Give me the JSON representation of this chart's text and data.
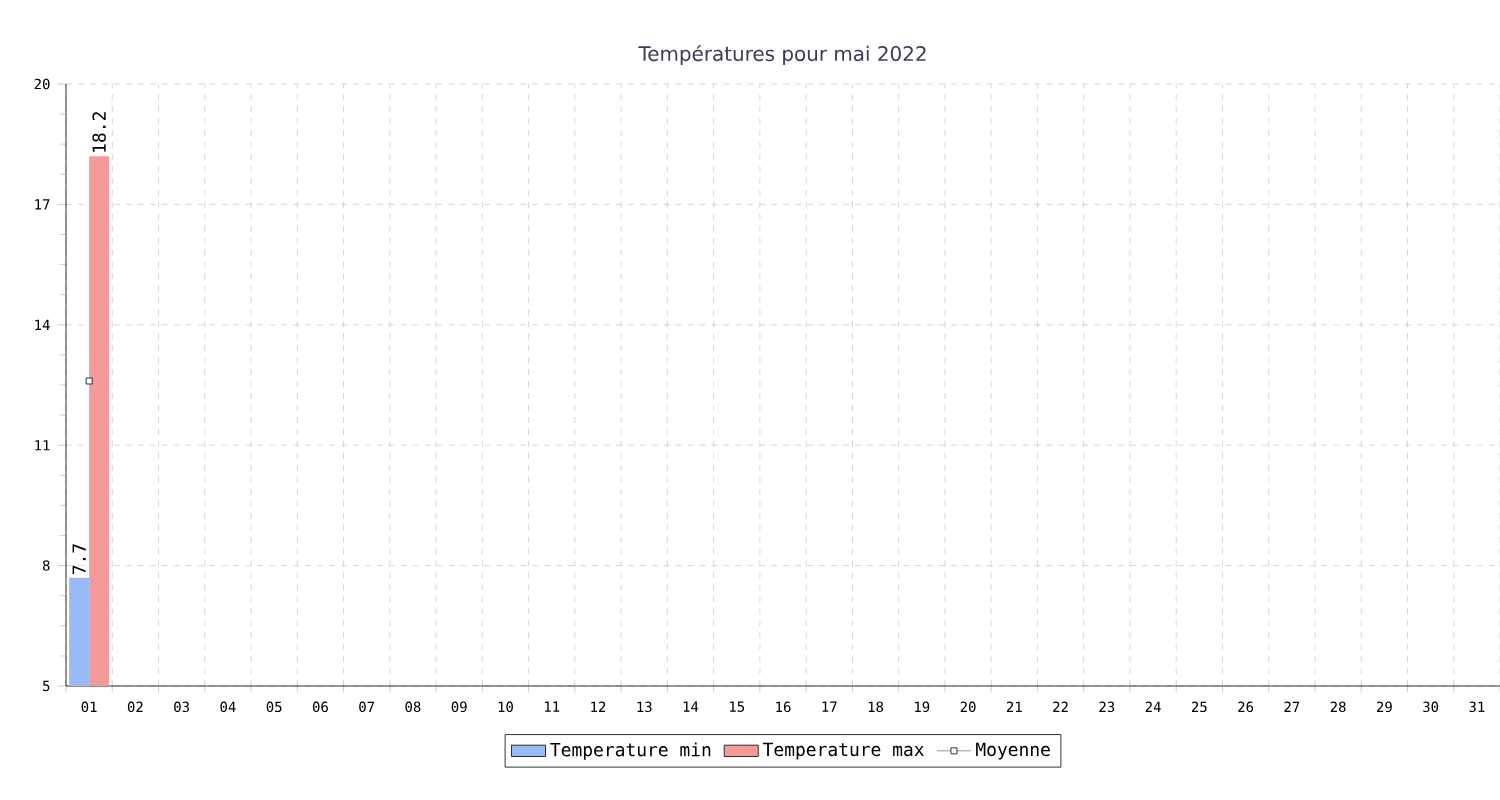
{
  "chart_data": {
    "type": "bar",
    "title": "Températures pour mai 2022",
    "categories": [
      "01",
      "02",
      "03",
      "04",
      "05",
      "06",
      "07",
      "08",
      "09",
      "10",
      "11",
      "12",
      "13",
      "14",
      "15",
      "16",
      "17",
      "18",
      "19",
      "20",
      "21",
      "22",
      "23",
      "24",
      "25",
      "26",
      "27",
      "28",
      "29",
      "30",
      "31"
    ],
    "series": [
      {
        "name": "Temperature min",
        "color": "#99bbf5",
        "values": [
          7.7,
          null,
          null,
          null,
          null,
          null,
          null,
          null,
          null,
          null,
          null,
          null,
          null,
          null,
          null,
          null,
          null,
          null,
          null,
          null,
          null,
          null,
          null,
          null,
          null,
          null,
          null,
          null,
          null,
          null,
          null
        ],
        "value_labels": [
          "7.7",
          null,
          null,
          null,
          null,
          null,
          null,
          null,
          null,
          null,
          null,
          null,
          null,
          null,
          null,
          null,
          null,
          null,
          null,
          null,
          null,
          null,
          null,
          null,
          null,
          null,
          null,
          null,
          null,
          null,
          null
        ]
      },
      {
        "name": "Temperature max",
        "color": "#f59a9a",
        "values": [
          18.2,
          null,
          null,
          null,
          null,
          null,
          null,
          null,
          null,
          null,
          null,
          null,
          null,
          null,
          null,
          null,
          null,
          null,
          null,
          null,
          null,
          null,
          null,
          null,
          null,
          null,
          null,
          null,
          null,
          null,
          null
        ],
        "value_labels": [
          "18.2",
          null,
          null,
          null,
          null,
          null,
          null,
          null,
          null,
          null,
          null,
          null,
          null,
          null,
          null,
          null,
          null,
          null,
          null,
          null,
          null,
          null,
          null,
          null,
          null,
          null,
          null,
          null,
          null,
          null,
          null
        ]
      },
      {
        "name": "Moyenne",
        "type": "line",
        "marker": "square",
        "color": "#000000",
        "values": [
          12.6,
          null,
          null,
          null,
          null,
          null,
          null,
          null,
          null,
          null,
          null,
          null,
          null,
          null,
          null,
          null,
          null,
          null,
          null,
          null,
          null,
          null,
          null,
          null,
          null,
          null,
          null,
          null,
          null,
          null,
          null
        ]
      }
    ],
    "ylim": [
      5,
      20
    ],
    "yticks": [
      5,
      8,
      11,
      14,
      17,
      20
    ],
    "grid": true,
    "legend": "bottom"
  }
}
